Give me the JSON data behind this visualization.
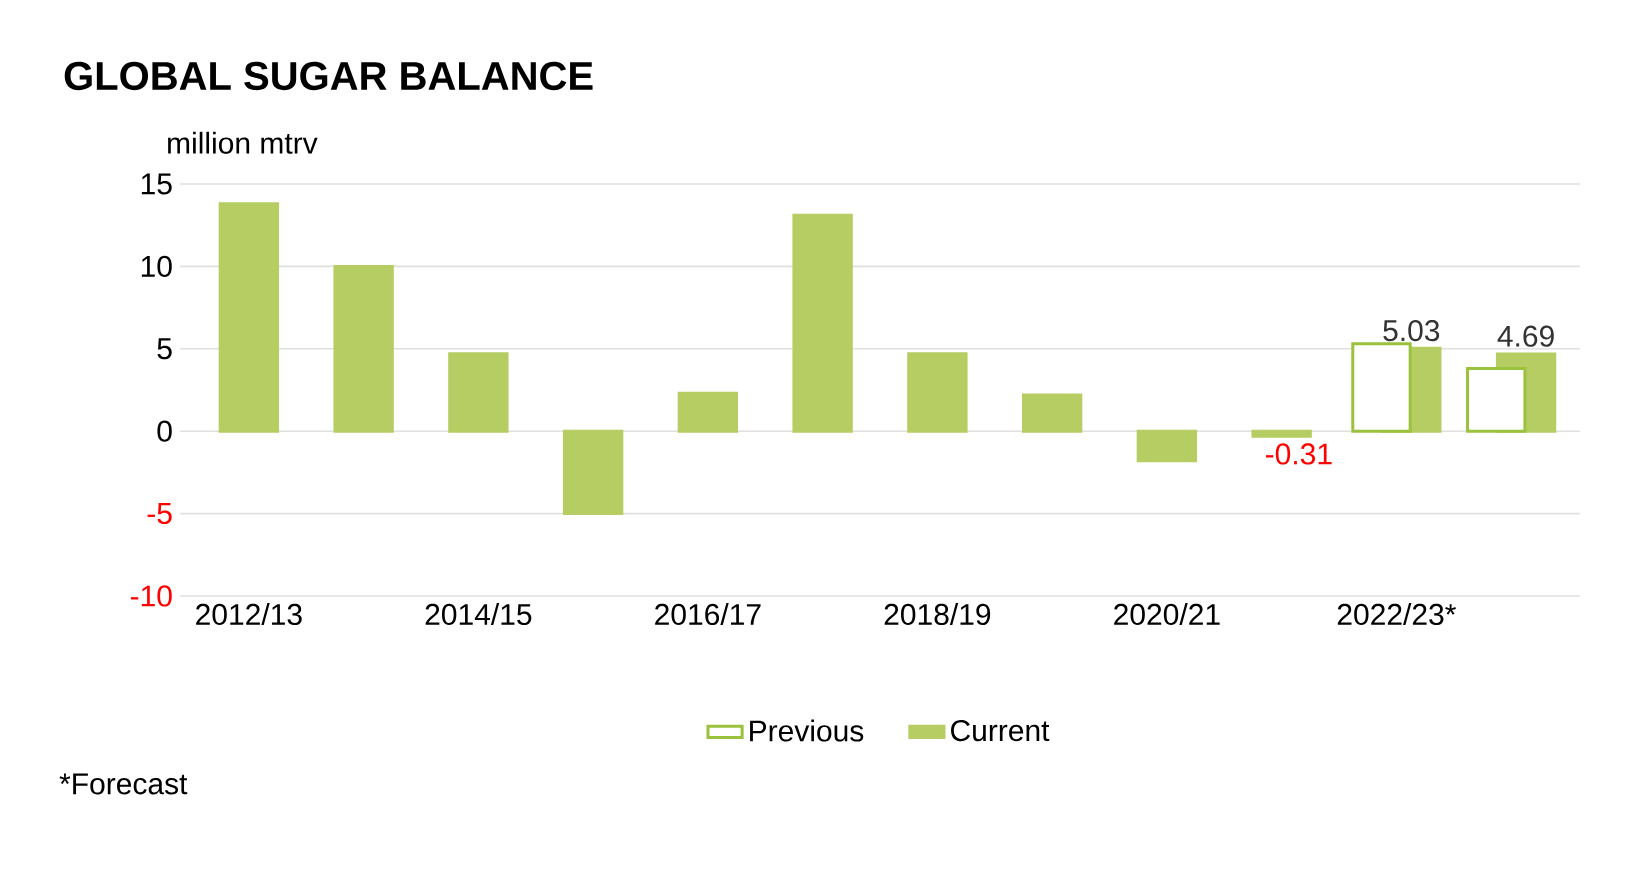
{
  "chart_data": {
    "type": "bar",
    "title": "GLOBAL SUGAR BALANCE",
    "ylabel": "million mtrv",
    "categories": [
      "2012/13",
      null,
      "2014/15",
      null,
      "2016/17",
      null,
      "2018/19",
      null,
      "2020/21",
      null,
      "2022/23*",
      null
    ],
    "series": [
      {
        "name": "Previous",
        "color": "#9bc23c",
        "values": [
          null,
          null,
          null,
          null,
          null,
          null,
          null,
          null,
          null,
          null,
          5.3,
          3.8
        ]
      },
      {
        "name": "Current",
        "color": "#b5cd62",
        "values": [
          13.8,
          10.0,
          4.7,
          -5.0,
          2.3,
          13.1,
          4.7,
          2.2,
          -1.8,
          -0.31,
          5.03,
          4.69
        ],
        "value_labels": [
          null,
          null,
          null,
          null,
          null,
          null,
          null,
          null,
          null,
          "-0.31",
          "5.03",
          "4.69"
        ]
      }
    ],
    "ylim": [
      -10,
      15
    ],
    "yticks": [
      -10,
      -5,
      0,
      5,
      10,
      15
    ],
    "grid": "y",
    "legend": "bottom",
    "annotations": [
      "*Forecast"
    ]
  }
}
